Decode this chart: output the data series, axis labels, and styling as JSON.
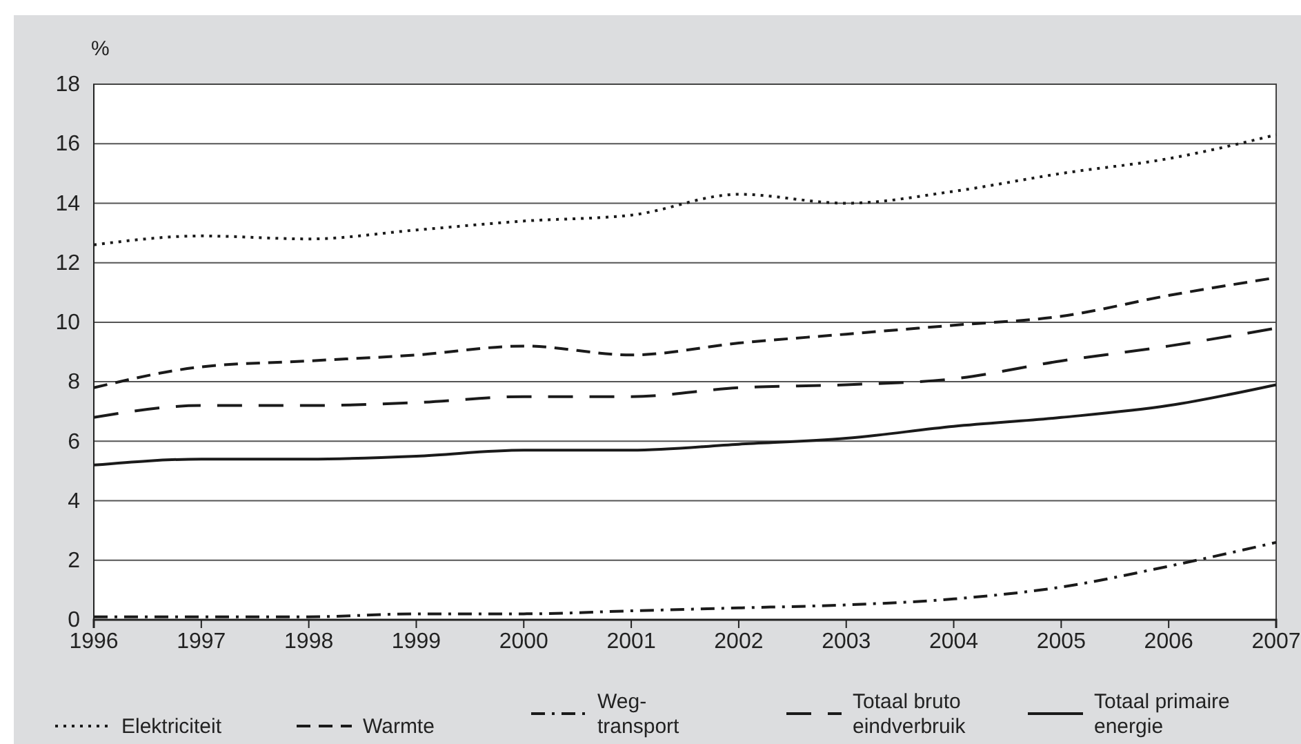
{
  "chart_data": {
    "type": "line",
    "ylabel": "%",
    "x": [
      1996,
      1997,
      1998,
      1999,
      2000,
      2001,
      2002,
      2003,
      2004,
      2005,
      2006,
      2007
    ],
    "xlim": [
      1996,
      2007
    ],
    "xticks": [
      1996,
      1997,
      1998,
      1999,
      2000,
      2001,
      2002,
      2003,
      2004,
      2005,
      2006,
      2007
    ],
    "ylim": [
      0,
      18
    ],
    "yticks": [
      0,
      2,
      4,
      6,
      8,
      10,
      12,
      14,
      16,
      18
    ],
    "grid": "y",
    "legend": "bottom",
    "series": [
      {
        "name": "Elektriciteit",
        "color": "#1a1a1a",
        "line_style": "dotted",
        "values": [
          12.6,
          12.9,
          12.8,
          13.1,
          13.4,
          13.6,
          14.3,
          14.0,
          14.4,
          15.0,
          15.5,
          16.3
        ]
      },
      {
        "name": "Warmte",
        "color": "#1a1a1a",
        "line_style": "dashed",
        "values": [
          7.8,
          8.5,
          8.7,
          8.9,
          9.2,
          8.9,
          9.3,
          9.6,
          9.9,
          10.2,
          10.9,
          11.5
        ]
      },
      {
        "name": "Weg-\ntransport",
        "color": "#1a1a1a",
        "line_style": "dashdot",
        "values": [
          0.1,
          0.1,
          0.1,
          0.2,
          0.2,
          0.3,
          0.4,
          0.5,
          0.7,
          1.1,
          1.8,
          2.6
        ]
      },
      {
        "name": "Totaal bruto\neindverbruik",
        "color": "#1a1a1a",
        "line_style": "longdash",
        "values": [
          6.8,
          7.2,
          7.2,
          7.3,
          7.5,
          7.5,
          7.8,
          7.9,
          8.1,
          8.7,
          9.2,
          9.8
        ]
      },
      {
        "name": "Totaal primaire\nenergie",
        "color": "#1a1a1a",
        "line_style": "solid",
        "values": [
          5.2,
          5.4,
          5.4,
          5.5,
          5.7,
          5.7,
          5.9,
          6.1,
          6.5,
          6.8,
          7.2,
          7.9
        ]
      }
    ]
  }
}
